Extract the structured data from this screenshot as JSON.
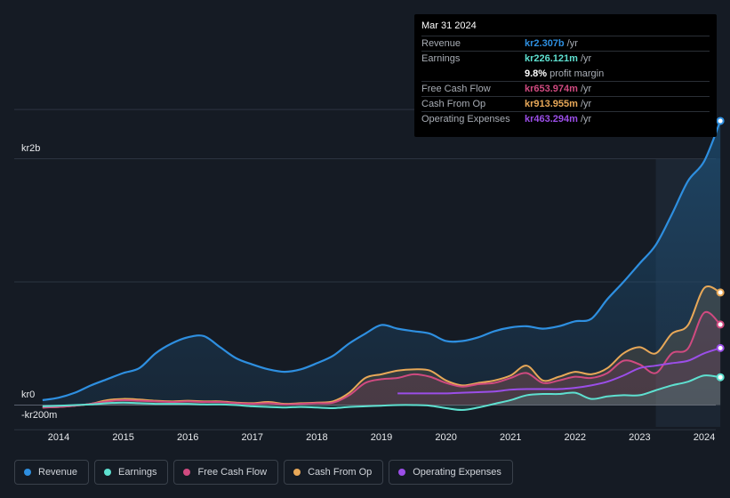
{
  "tooltip": {
    "date": "Mar 31 2024",
    "rows": {
      "revenue": {
        "label": "Revenue",
        "value": "kr2.307b",
        "unit": "/yr"
      },
      "earnings": {
        "label": "Earnings",
        "value": "kr226.121m",
        "unit": "/yr"
      },
      "margin": {
        "value": "9.8%",
        "text": "profit margin"
      },
      "fcf": {
        "label": "Free Cash Flow",
        "value": "kr653.974m",
        "unit": "/yr"
      },
      "cfo": {
        "label": "Cash From Op",
        "value": "kr913.955m",
        "unit": "/yr"
      },
      "opex": {
        "label": "Operating Expenses",
        "value": "kr463.294m",
        "unit": "/yr"
      }
    }
  },
  "legend": [
    {
      "label": "Revenue",
      "color": "#2e8fe0"
    },
    {
      "label": "Earnings",
      "color": "#5ee0d0"
    },
    {
      "label": "Free Cash Flow",
      "color": "#d04a80"
    },
    {
      "label": "Cash From Op",
      "color": "#e8a858"
    },
    {
      "label": "Operating Expenses",
      "color": "#9b4ee8"
    }
  ],
  "chart_data": {
    "type": "area",
    "title": "",
    "xlabel": "",
    "ylabel": "",
    "y_axis_labels": {
      "top": "kr2b",
      "zero": "kr0",
      "bottom": "-kr200m"
    },
    "ylim": [
      -200,
      2400
    ],
    "units": "kr millions",
    "x_ticks": [
      "2014",
      "2015",
      "2016",
      "2017",
      "2018",
      "2019",
      "2020",
      "2021",
      "2022",
      "2023",
      "2024"
    ],
    "highlight_range": [
      2023.25,
      2024.25
    ],
    "series": [
      {
        "name": "Revenue",
        "color": "#2e8fe0",
        "points": [
          [
            2013.75,
            40
          ],
          [
            2014.0,
            60
          ],
          [
            2014.25,
            100
          ],
          [
            2014.5,
            160
          ],
          [
            2014.75,
            210
          ],
          [
            2015.0,
            260
          ],
          [
            2015.25,
            300
          ],
          [
            2015.5,
            420
          ],
          [
            2015.75,
            500
          ],
          [
            2016.0,
            550
          ],
          [
            2016.25,
            560
          ],
          [
            2016.5,
            470
          ],
          [
            2016.75,
            380
          ],
          [
            2017.0,
            330
          ],
          [
            2017.25,
            290
          ],
          [
            2017.5,
            270
          ],
          [
            2017.75,
            290
          ],
          [
            2018.0,
            340
          ],
          [
            2018.25,
            400
          ],
          [
            2018.5,
            500
          ],
          [
            2018.75,
            580
          ],
          [
            2019.0,
            650
          ],
          [
            2019.25,
            620
          ],
          [
            2019.5,
            600
          ],
          [
            2019.75,
            580
          ],
          [
            2020.0,
            520
          ],
          [
            2020.25,
            520
          ],
          [
            2020.5,
            550
          ],
          [
            2020.75,
            600
          ],
          [
            2021.0,
            630
          ],
          [
            2021.25,
            640
          ],
          [
            2021.5,
            620
          ],
          [
            2021.75,
            640
          ],
          [
            2022.0,
            680
          ],
          [
            2022.25,
            700
          ],
          [
            2022.5,
            860
          ],
          [
            2022.75,
            1000
          ],
          [
            2023.0,
            1150
          ],
          [
            2023.25,
            1300
          ],
          [
            2023.5,
            1550
          ],
          [
            2023.75,
            1820
          ],
          [
            2024.0,
            1980
          ],
          [
            2024.25,
            2307
          ]
        ]
      },
      {
        "name": "Cash From Op",
        "color": "#e8a858",
        "points": [
          [
            2013.75,
            -20
          ],
          [
            2014.0,
            -15
          ],
          [
            2014.25,
            -5
          ],
          [
            2014.5,
            10
          ],
          [
            2014.75,
            40
          ],
          [
            2015.0,
            50
          ],
          [
            2015.25,
            45
          ],
          [
            2015.5,
            35
          ],
          [
            2015.75,
            30
          ],
          [
            2016.0,
            35
          ],
          [
            2016.25,
            30
          ],
          [
            2016.5,
            30
          ],
          [
            2016.75,
            20
          ],
          [
            2017.0,
            15
          ],
          [
            2017.25,
            25
          ],
          [
            2017.5,
            10
          ],
          [
            2017.75,
            15
          ],
          [
            2018.0,
            20
          ],
          [
            2018.25,
            30
          ],
          [
            2018.5,
            100
          ],
          [
            2018.75,
            220
          ],
          [
            2019.0,
            250
          ],
          [
            2019.25,
            280
          ],
          [
            2019.5,
            290
          ],
          [
            2019.75,
            280
          ],
          [
            2020.0,
            200
          ],
          [
            2020.25,
            160
          ],
          [
            2020.5,
            180
          ],
          [
            2020.75,
            200
          ],
          [
            2021.0,
            240
          ],
          [
            2021.25,
            320
          ],
          [
            2021.5,
            200
          ],
          [
            2021.75,
            230
          ],
          [
            2022.0,
            270
          ],
          [
            2022.25,
            250
          ],
          [
            2022.5,
            300
          ],
          [
            2022.75,
            420
          ],
          [
            2023.0,
            470
          ],
          [
            2023.25,
            420
          ],
          [
            2023.5,
            580
          ],
          [
            2023.75,
            650
          ],
          [
            2024.0,
            950
          ],
          [
            2024.25,
            914
          ]
        ]
      },
      {
        "name": "Free Cash Flow",
        "color": "#d04a80",
        "points": [
          [
            2013.75,
            -20
          ],
          [
            2014.0,
            -15
          ],
          [
            2014.25,
            -5
          ],
          [
            2014.5,
            10
          ],
          [
            2014.75,
            30
          ],
          [
            2015.0,
            40
          ],
          [
            2015.25,
            35
          ],
          [
            2015.5,
            30
          ],
          [
            2015.75,
            25
          ],
          [
            2016.0,
            30
          ],
          [
            2016.25,
            25
          ],
          [
            2016.5,
            25
          ],
          [
            2016.75,
            15
          ],
          [
            2017.0,
            10
          ],
          [
            2017.25,
            15
          ],
          [
            2017.5,
            5
          ],
          [
            2017.75,
            10
          ],
          [
            2018.0,
            15
          ],
          [
            2018.25,
            20
          ],
          [
            2018.5,
            80
          ],
          [
            2018.75,
            180
          ],
          [
            2019.0,
            210
          ],
          [
            2019.25,
            220
          ],
          [
            2019.5,
            250
          ],
          [
            2019.75,
            230
          ],
          [
            2020.0,
            180
          ],
          [
            2020.25,
            150
          ],
          [
            2020.5,
            170
          ],
          [
            2020.75,
            180
          ],
          [
            2021.0,
            220
          ],
          [
            2021.25,
            260
          ],
          [
            2021.5,
            180
          ],
          [
            2021.75,
            200
          ],
          [
            2022.0,
            230
          ],
          [
            2022.25,
            220
          ],
          [
            2022.5,
            260
          ],
          [
            2022.75,
            360
          ],
          [
            2023.0,
            330
          ],
          [
            2023.25,
            260
          ],
          [
            2023.5,
            420
          ],
          [
            2023.75,
            460
          ],
          [
            2024.0,
            750
          ],
          [
            2024.25,
            654
          ]
        ]
      },
      {
        "name": "Operating Expenses",
        "color": "#9b4ee8",
        "points": [
          [
            2019.25,
            95
          ],
          [
            2019.5,
            95
          ],
          [
            2019.75,
            95
          ],
          [
            2020.0,
            95
          ],
          [
            2020.25,
            100
          ],
          [
            2020.5,
            105
          ],
          [
            2020.75,
            110
          ],
          [
            2021.0,
            125
          ],
          [
            2021.25,
            130
          ],
          [
            2021.5,
            130
          ],
          [
            2021.75,
            130
          ],
          [
            2022.0,
            140
          ],
          [
            2022.25,
            160
          ],
          [
            2022.5,
            190
          ],
          [
            2022.75,
            240
          ],
          [
            2023.0,
            300
          ],
          [
            2023.25,
            320
          ],
          [
            2023.5,
            340
          ],
          [
            2023.75,
            360
          ],
          [
            2024.0,
            420
          ],
          [
            2024.25,
            463
          ]
        ]
      },
      {
        "name": "Earnings",
        "color": "#5ee0d0",
        "points": [
          [
            2013.75,
            -10
          ],
          [
            2014.0,
            -5
          ],
          [
            2014.25,
            0
          ],
          [
            2014.5,
            5
          ],
          [
            2014.75,
            15
          ],
          [
            2015.0,
            20
          ],
          [
            2015.25,
            15
          ],
          [
            2015.5,
            10
          ],
          [
            2015.75,
            10
          ],
          [
            2016.0,
            10
          ],
          [
            2016.25,
            5
          ],
          [
            2016.5,
            5
          ],
          [
            2016.75,
            0
          ],
          [
            2017.0,
            -10
          ],
          [
            2017.25,
            -15
          ],
          [
            2017.5,
            -20
          ],
          [
            2017.75,
            -15
          ],
          [
            2018.0,
            -20
          ],
          [
            2018.25,
            -25
          ],
          [
            2018.5,
            -15
          ],
          [
            2018.75,
            -10
          ],
          [
            2019.0,
            -5
          ],
          [
            2019.25,
            0
          ],
          [
            2019.5,
            0
          ],
          [
            2019.75,
            -5
          ],
          [
            2020.0,
            -25
          ],
          [
            2020.25,
            -40
          ],
          [
            2020.5,
            -20
          ],
          [
            2020.75,
            10
          ],
          [
            2021.0,
            40
          ],
          [
            2021.25,
            80
          ],
          [
            2021.5,
            90
          ],
          [
            2021.75,
            90
          ],
          [
            2022.0,
            100
          ],
          [
            2022.25,
            50
          ],
          [
            2022.5,
            70
          ],
          [
            2022.75,
            80
          ],
          [
            2023.0,
            80
          ],
          [
            2023.25,
            120
          ],
          [
            2023.5,
            160
          ],
          [
            2023.75,
            190
          ],
          [
            2024.0,
            240
          ],
          [
            2024.25,
            226
          ]
        ]
      }
    ]
  }
}
